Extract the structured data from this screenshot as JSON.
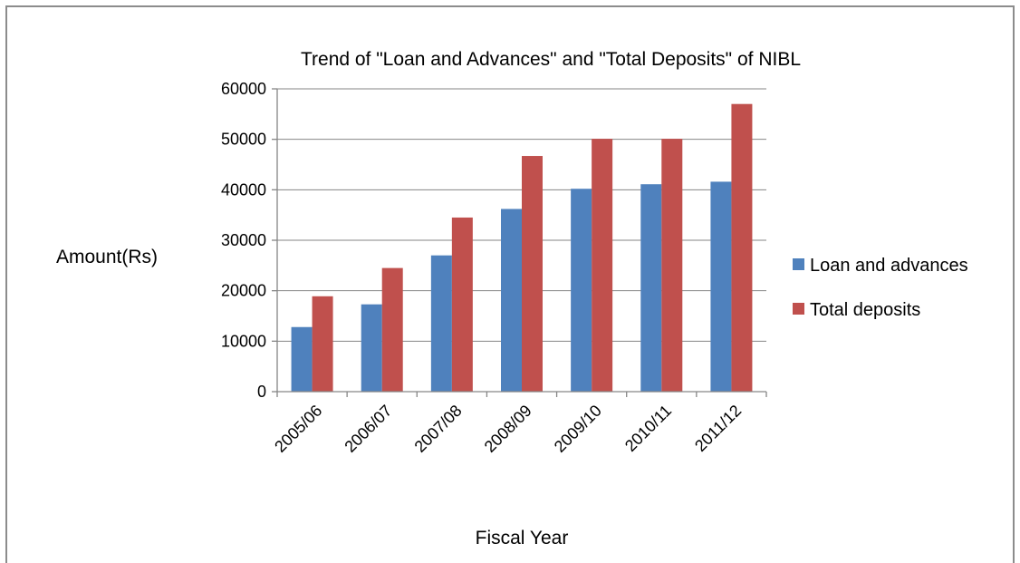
{
  "chart_data": {
    "type": "bar",
    "title": "Trend of \"Loan and Advances\" and \"Total Deposits\" of NIBL",
    "xlabel": "Fiscal Year",
    "ylabel": "Amount(Rs)",
    "categories": [
      "2005/06",
      "2006/07",
      "2007/08",
      "2008/09",
      "2009/10",
      "2010/11",
      "2011/12"
    ],
    "series": [
      {
        "name": "Loan and advances",
        "color": "#4f81bd",
        "values": [
          12800,
          17300,
          27000,
          36200,
          40200,
          41100,
          41600
        ]
      },
      {
        "name": "Total deposits",
        "color": "#c0504d",
        "values": [
          18900,
          24500,
          34500,
          46700,
          50100,
          50100,
          57000
        ]
      }
    ],
    "ylim": [
      0,
      60000
    ],
    "yticks": [
      0,
      10000,
      20000,
      30000,
      40000,
      50000,
      60000
    ],
    "grid": true,
    "legend_position": "right"
  }
}
